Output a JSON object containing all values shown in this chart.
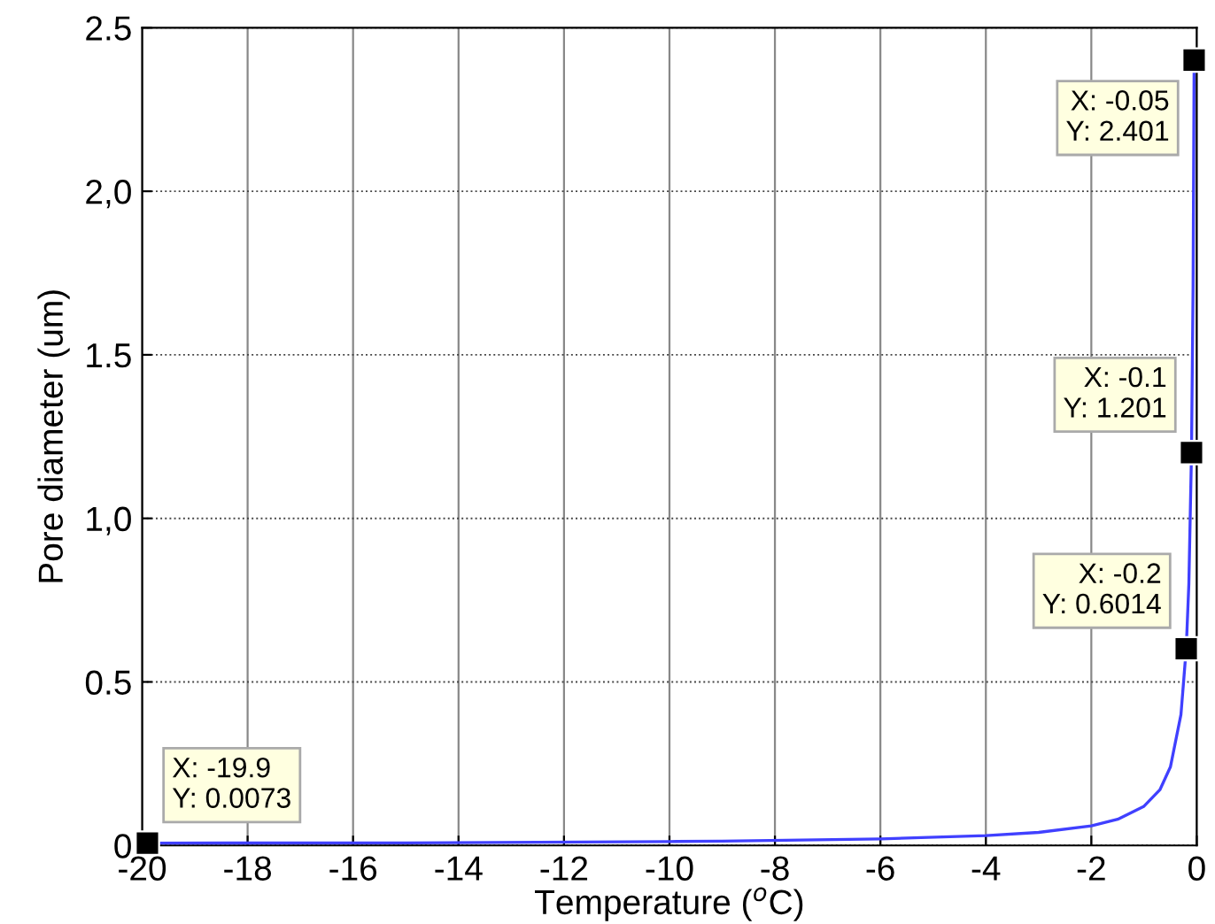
{
  "chart_data": {
    "type": "line",
    "xlabel": "Temperature ($^{o}$C)",
    "ylabel": "Pore diameter (um)",
    "xlim": [
      -20,
      0
    ],
    "xticks": [
      -20,
      -18,
      -16,
      -14,
      -12,
      -10,
      -8,
      -6,
      -4,
      -2,
      0
    ],
    "ylim": [
      0,
      2.5
    ],
    "yticks": [
      0,
      0.5,
      {
        "value": 1,
        "label": "1,0"
      },
      1.5,
      {
        "value": 2,
        "label": "2,0"
      },
      2.5
    ],
    "grid": true,
    "series": [
      {
        "color": "#4040ff",
        "marker": "none",
        "x": [
          -19.9,
          -15,
          -10,
          -9,
          -6,
          -4,
          -3,
          -2,
          -1.5,
          -1,
          -0.7,
          -0.5,
          -0.3,
          -0.2,
          -0.15,
          -0.1,
          -0.07,
          -0.05
        ],
        "values": [
          0.0073,
          0.008,
          0.012,
          0.013,
          0.02,
          0.03,
          0.04,
          0.06,
          0.08,
          0.12,
          0.17,
          0.24,
          0.4,
          0.6014,
          0.8,
          1.201,
          1.71,
          2.401
        ]
      },
      {
        "type": "scatter",
        "color": "#000000",
        "marker": "square",
        "x": [
          -19.9,
          -0.2,
          -0.1,
          -0.05
        ],
        "values": [
          0.0073,
          0.6014,
          1.201,
          2.401
        ]
      }
    ],
    "annotations": [
      {
        "text": "X: -19.9\nY: 0.0073",
        "x": -19.9,
        "y": 0.0073
      },
      {
        "text": "X: -0.2\nY: 0.6014",
        "x": -0.2,
        "y": 0.6014
      },
      {
        "text": "X: -0.1\nY: 1.201",
        "x": -0.1,
        "y": 1.201
      },
      {
        "text": "X: -0.05\nY: 2.401",
        "x": -0.05,
        "y": 2.401
      }
    ]
  }
}
